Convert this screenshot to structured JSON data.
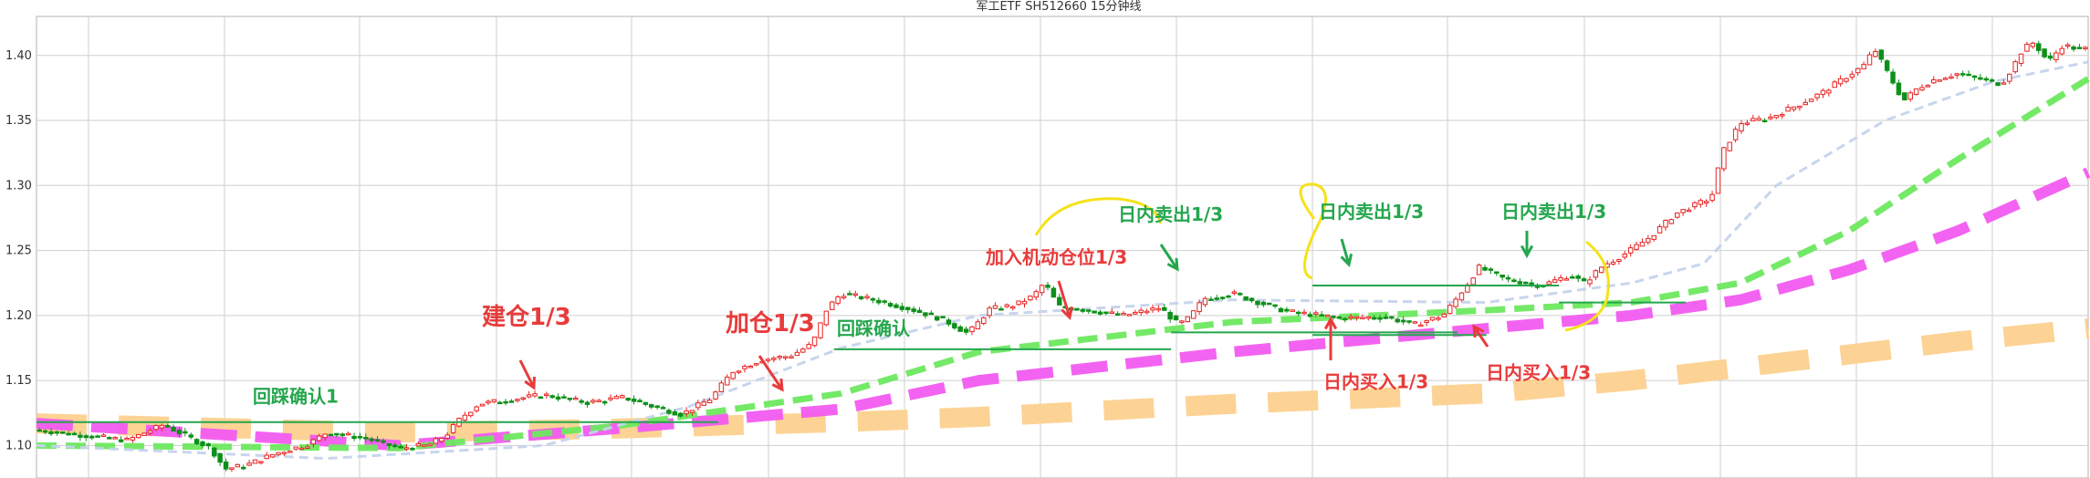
{
  "chart_data": {
    "type": "candlestick",
    "title": "军工ETF  SH512660  15分钟线",
    "ylim": [
      1.075,
      1.43
    ],
    "y_ticks": [
      "1.10",
      "1.15",
      "1.20",
      "1.25",
      "1.30",
      "1.35",
      "1.40"
    ],
    "grid": true,
    "bars": 352,
    "price_path": [
      [
        0,
        1.112
      ],
      [
        25,
        1.104
      ],
      [
        35,
        1.116
      ],
      [
        48,
        1.098
      ],
      [
        52,
        1.082
      ],
      [
        58,
        1.085
      ],
      [
        66,
        1.094
      ],
      [
        75,
        1.101
      ],
      [
        80,
        1.11
      ],
      [
        90,
        1.106
      ],
      [
        100,
        1.098
      ],
      [
        108,
        1.1
      ],
      [
        113,
        1.108
      ],
      [
        117,
        1.121
      ],
      [
        122,
        1.132
      ],
      [
        140,
        1.139
      ],
      [
        152,
        1.133
      ],
      [
        162,
        1.137
      ],
      [
        170,
        1.13
      ],
      [
        178,
        1.124
      ],
      [
        186,
        1.136
      ],
      [
        192,
        1.157
      ],
      [
        200,
        1.166
      ],
      [
        208,
        1.169
      ],
      [
        214,
        1.178
      ],
      [
        218,
        1.205
      ],
      [
        222,
        1.217
      ],
      [
        231,
        1.212
      ],
      [
        241,
        1.205
      ],
      [
        250,
        1.197
      ],
      [
        257,
        1.186
      ],
      [
        263,
        1.205
      ],
      [
        270,
        1.208
      ],
      [
        275,
        1.215
      ],
      [
        278,
        1.225
      ],
      [
        282,
        1.207
      ],
      [
        290,
        1.204
      ],
      [
        300,
        1.2
      ],
      [
        310,
        1.206
      ],
      [
        315,
        1.193
      ],
      [
        318,
        1.198
      ],
      [
        322,
        1.213
      ],
      [
        330,
        1.217
      ],
      [
        335,
        1.212
      ],
      [
        345,
        1.203
      ],
      [
        360,
        1.198
      ],
      [
        372,
        1.199
      ],
      [
        380,
        1.193
      ],
      [
        388,
        1.2
      ],
      [
        392,
        1.214
      ],
      [
        398,
        1.237
      ],
      [
        405,
        1.228
      ],
      [
        415,
        1.223
      ],
      [
        423,
        1.231
      ],
      [
        427,
        1.225
      ],
      [
        432,
        1.238
      ],
      [
        438,
        1.247
      ],
      [
        445,
        1.26
      ],
      [
        452,
        1.278
      ],
      [
        460,
        1.288
      ],
      [
        462,
        1.29
      ],
      [
        465,
        1.325
      ],
      [
        470,
        1.348
      ],
      [
        478,
        1.352
      ],
      [
        486,
        1.362
      ],
      [
        493,
        1.372
      ],
      [
        500,
        1.385
      ],
      [
        504,
        1.392
      ],
      [
        507,
        1.405
      ],
      [
        511,
        1.385
      ],
      [
        515,
        1.365
      ],
      [
        519,
        1.375
      ],
      [
        524,
        1.382
      ],
      [
        530,
        1.386
      ],
      [
        536,
        1.382
      ],
      [
        542,
        1.378
      ],
      [
        545,
        1.39
      ],
      [
        548,
        1.405
      ],
      [
        551,
        1.41
      ],
      [
        555,
        1.395
      ],
      [
        559,
        1.408
      ],
      [
        563,
        1.405
      ]
    ],
    "moving_averages": [
      {
        "style": "thin light-blue dashed",
        "color": "#c5d3ec",
        "points": [
          [
            0,
            1.1
          ],
          [
            80,
            1.09
          ],
          [
            140,
            1.1
          ],
          [
            180,
            1.13
          ],
          [
            222,
            1.175
          ],
          [
            260,
            1.2
          ],
          [
            330,
            1.212
          ],
          [
            400,
            1.21
          ],
          [
            440,
            1.225
          ],
          [
            460,
            1.24
          ],
          [
            480,
            1.3
          ],
          [
            510,
            1.35
          ],
          [
            540,
            1.38
          ],
          [
            566,
            1.395
          ]
        ]
      },
      {
        "style": "green dashed",
        "color": "#6de85f",
        "points": [
          [
            0,
            1.1
          ],
          [
            100,
            1.098
          ],
          [
            160,
            1.115
          ],
          [
            222,
            1.14
          ],
          [
            260,
            1.172
          ],
          [
            330,
            1.195
          ],
          [
            400,
            1.204
          ],
          [
            440,
            1.21
          ],
          [
            470,
            1.225
          ],
          [
            500,
            1.265
          ],
          [
            530,
            1.32
          ],
          [
            566,
            1.382
          ]
        ]
      },
      {
        "style": "magenta thick dashed",
        "color": "#f25bf0",
        "points": [
          [
            0,
            1.117
          ],
          [
            100,
            1.1
          ],
          [
            160,
            1.113
          ],
          [
            222,
            1.128
          ],
          [
            260,
            1.15
          ],
          [
            330,
            1.172
          ],
          [
            400,
            1.19
          ],
          [
            440,
            1.2
          ],
          [
            470,
            1.212
          ],
          [
            500,
            1.235
          ],
          [
            530,
            1.265
          ],
          [
            566,
            1.31
          ]
        ]
      },
      {
        "style": "orange broad dashed",
        "color": "#fcd18f",
        "points": [
          [
            0,
            1.117
          ],
          [
            100,
            1.11
          ],
          [
            160,
            1.113
          ],
          [
            222,
            1.118
          ],
          [
            260,
            1.122
          ],
          [
            330,
            1.132
          ],
          [
            400,
            1.14
          ],
          [
            440,
            1.15
          ],
          [
            470,
            1.16
          ],
          [
            500,
            1.17
          ],
          [
            530,
            1.18
          ],
          [
            566,
            1.19
          ]
        ]
      }
    ],
    "support_lines": [
      {
        "from": 0,
        "to": 188,
        "y": 1.118,
        "color": "#25a64e"
      },
      {
        "from": 220,
        "to": 313,
        "y": 1.174,
        "color": "#25a64e"
      },
      {
        "from": 313,
        "to": 392,
        "y": 1.187,
        "color": "#25a64e"
      },
      {
        "from": 352,
        "to": 420,
        "y": 1.223,
        "color": "#25a64e"
      },
      {
        "from": 420,
        "to": 455,
        "y": 1.21,
        "color": "#25a64e"
      },
      {
        "from": 352,
        "to": 400,
        "y": 1.185,
        "color": "#25a64e"
      }
    ],
    "annotations": [
      {
        "id": "huicai-1",
        "text": "回踩确认1",
        "color": "#25a64e",
        "size": 20,
        "x": 277,
        "y": 1.133
      },
      {
        "id": "jiancang",
        "text": "建仓1/3",
        "color": "#e83b3b",
        "size": 26,
        "x": 528,
        "y": 1.193
      },
      {
        "id": "jiacang",
        "text": "加仓1/3",
        "color": "#e83b3b",
        "size": 26,
        "x": 795,
        "y": 1.188
      },
      {
        "id": "huicai-2",
        "text": "回踩确认",
        "color": "#25a64e",
        "size": 20,
        "x": 917,
        "y": 1.185
      },
      {
        "id": "jiaru",
        "text": "加入机动仓位1/3",
        "color": "#e83b3b",
        "size": 20,
        "x": 1080,
        "y": 1.24
      },
      {
        "id": "maichu-1",
        "text": "日内卖出1/3",
        "color": "#25a64e",
        "size": 20,
        "x": 1225,
        "y": 1.273
      },
      {
        "id": "maichu-2",
        "text": "日内卖出1/3",
        "color": "#25a64e",
        "size": 20,
        "x": 1445,
        "y": 1.275
      },
      {
        "id": "maichu-3",
        "text": "日内卖出1/3",
        "color": "#25a64e",
        "size": 20,
        "x": 1645,
        "y": 1.275
      },
      {
        "id": "mairu-1",
        "text": "日内买入1/3",
        "color": "#e83b3b",
        "size": 20,
        "x": 1450,
        "y": 1.144
      },
      {
        "id": "mairu-2",
        "text": "日内买入1/3",
        "color": "#e83b3b",
        "size": 20,
        "x": 1628,
        "y": 1.151
      }
    ]
  }
}
